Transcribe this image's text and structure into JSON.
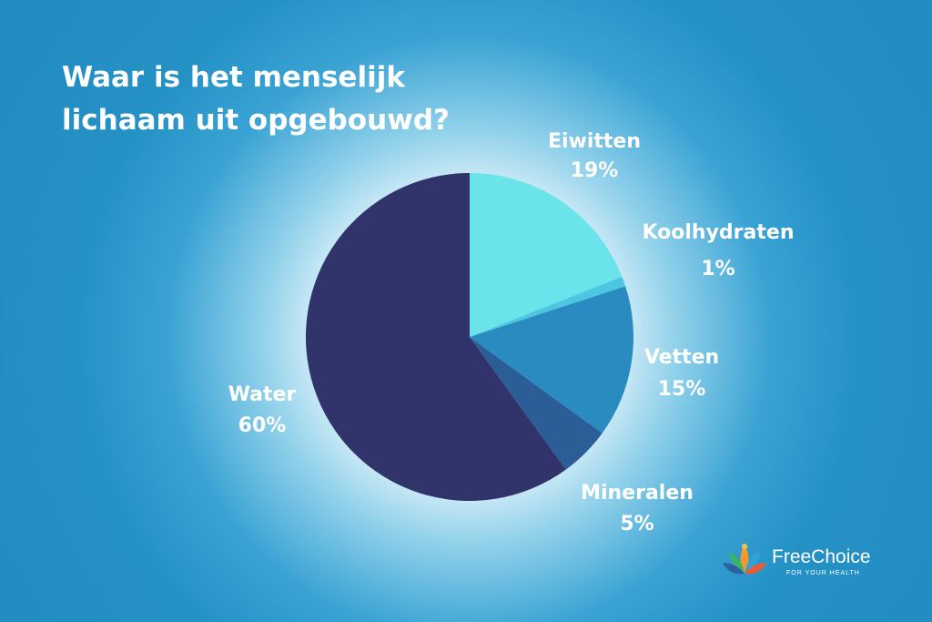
{
  "chart_data": {
    "type": "pie",
    "title": "Waar is het menselijk\nlichaam uit opgebouwd?",
    "slices": [
      {
        "name": "Eiwitten",
        "value": 19,
        "label": "19%",
        "color": "#6ae3eb"
      },
      {
        "name": "Koolhydraten",
        "value": 1,
        "label": "1%",
        "color": "#4cc6e2"
      },
      {
        "name": "Vetten",
        "value": 15,
        "label": "15%",
        "color": "#2a8bc0"
      },
      {
        "name": "Mineralen",
        "value": 5,
        "label": "5%",
        "color": "#2b5d97"
      },
      {
        "name": "Water",
        "value": 60,
        "label": "60%",
        "color": "#31336b"
      }
    ],
    "start_angle_deg": 0,
    "direction": "clockwise"
  },
  "brand": {
    "name": "FreeChoice",
    "tagline": "FOR YOUR HEALTH",
    "logo_icon": "lotus-icon"
  }
}
